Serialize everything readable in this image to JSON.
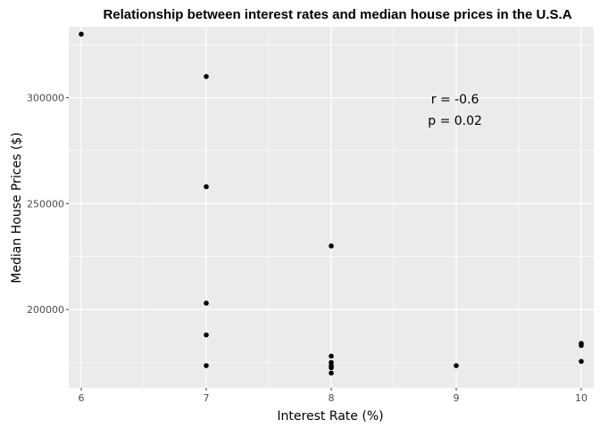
{
  "chart_data": {
    "type": "scatter",
    "title": "Relationship between interest rates and median house prices in the U.S.A",
    "xlabel": "Interest Rate (%)",
    "ylabel": "Median House Prices ($)",
    "xlim": [
      5.9,
      10.1
    ],
    "ylim": [
      163000,
      333500
    ],
    "x_ticks": [
      6,
      7,
      8,
      9,
      10
    ],
    "x_tick_labels": [
      "6",
      "7",
      "8",
      "9",
      "10"
    ],
    "y_ticks": [
      200000,
      250000,
      300000
    ],
    "y_tick_labels": [
      "200000",
      "250000",
      "300000"
    ],
    "grid": true,
    "panel_background": "#ebebeb",
    "grid_color": "#ffffff",
    "point_color": "#000000",
    "annotations": [
      "r = -0.6",
      "p = 0.02"
    ],
    "annotation_anchor": [
      8.99,
      299000
    ],
    "points": [
      {
        "x": 6,
        "y": 330000
      },
      {
        "x": 7,
        "y": 310000
      },
      {
        "x": 7,
        "y": 258000
      },
      {
        "x": 7,
        "y": 203000
      },
      {
        "x": 7,
        "y": 188000
      },
      {
        "x": 7,
        "y": 173500
      },
      {
        "x": 8,
        "y": 230000
      },
      {
        "x": 8,
        "y": 178000
      },
      {
        "x": 8,
        "y": 175000
      },
      {
        "x": 8,
        "y": 173500
      },
      {
        "x": 8,
        "y": 172500
      },
      {
        "x": 8,
        "y": 170000
      },
      {
        "x": 9,
        "y": 173500
      },
      {
        "x": 10,
        "y": 184000
      },
      {
        "x": 10,
        "y": 183000
      },
      {
        "x": 10,
        "y": 175500
      }
    ]
  }
}
